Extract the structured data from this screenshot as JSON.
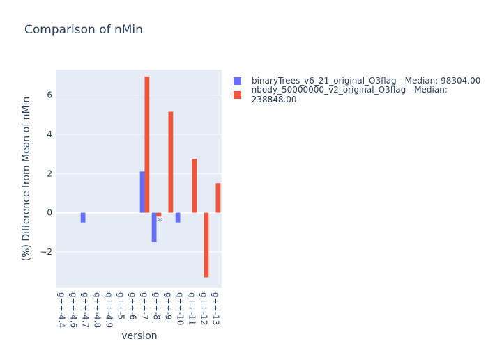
{
  "chart_data": {
    "type": "bar",
    "title": "Comparison of nMin",
    "xlabel": "version",
    "ylabel": "(%) Difference from Mean of nMin",
    "categories": [
      "g++-4.4",
      "g++-4.6",
      "g++-4.7",
      "g++-4.8",
      "g++-4.9",
      "g++-5",
      "g++-6",
      "g++-7",
      "g++-8",
      "g++-9",
      "g++-10",
      "g++-11",
      "g++-12",
      "g++-13"
    ],
    "series": [
      {
        "name": "binaryTrees_v6_21_original_O3flag - Median: 98304.00",
        "color": "#636efa",
        "values": [
          0,
          0,
          -0.5,
          0,
          0,
          0,
          0,
          2.1,
          -1.5,
          0,
          -0.5,
          0,
          0,
          0
        ]
      },
      {
        "name": "nbody_50000000_v2_original_O3flag - Median: 238848.00",
        "color": "#ef553b",
        "values": [
          0,
          0,
          0,
          0,
          0,
          0,
          0,
          6.95,
          -0.2,
          5.15,
          0,
          2.75,
          -3.3,
          1.5
        ]
      }
    ],
    "ylim": [
      -3.85,
      7.3
    ],
    "yticks": [
      -2,
      0,
      2,
      4,
      6
    ],
    "ytick_labels": [
      "−2",
      "0",
      "2",
      "4",
      "6"
    ],
    "annotations": [
      "0.0"
    ],
    "grid": true,
    "legend_position": "top-right",
    "plot_background": "#e5ecf6"
  }
}
